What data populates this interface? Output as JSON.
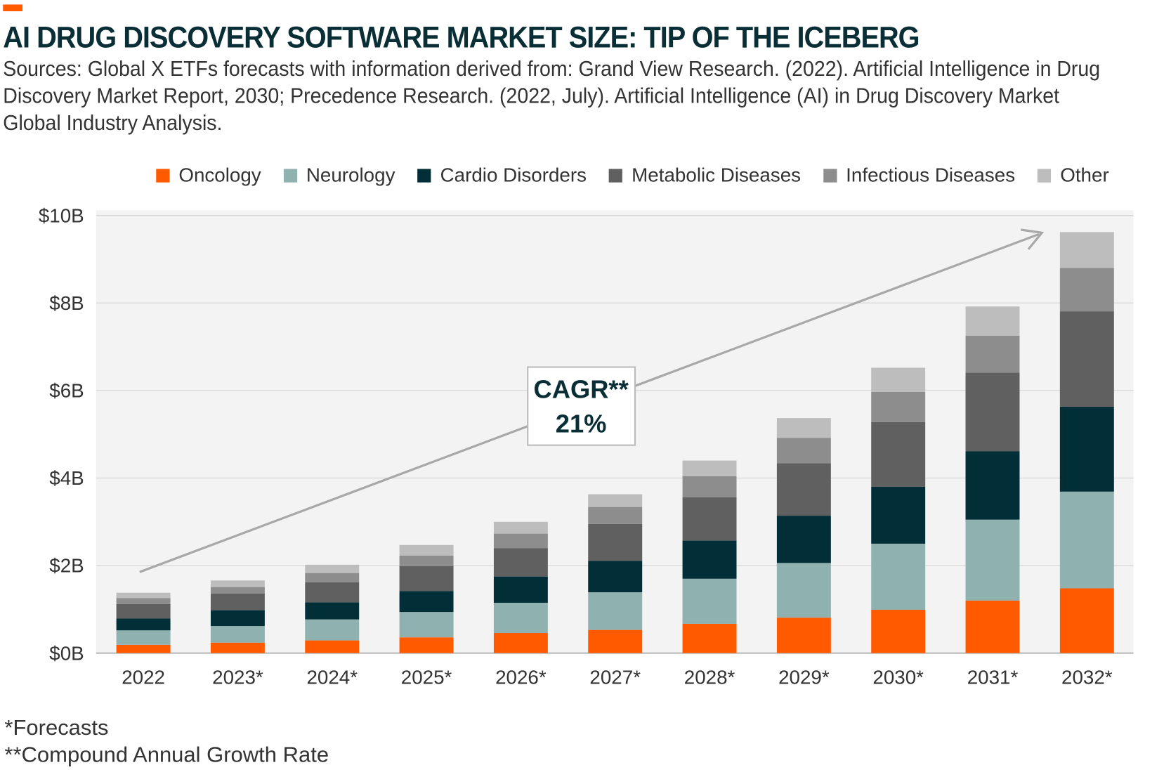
{
  "header": {
    "title": "AI DRUG DISCOVERY SOFTWARE MARKET SIZE: TIP OF THE ICEBERG",
    "subtitle": "Sources: Global X ETFs forecasts with information derived from: Grand View Research. (2022). Artificial Intelligence in Drug Discovery Market Report, 2030; Precedence Research. (2022, July). Artificial Intelligence (AI) in Drug Discovery Market Global Industry Analysis."
  },
  "colors": {
    "accent": "#ff5a00",
    "title": "#0a2e36",
    "plot_bg": "#f3f3f3"
  },
  "annotation": {
    "line1": "CAGR**",
    "line2": "21%"
  },
  "footnotes": [
    "*Forecasts",
    "**Compound Annual Growth Rate"
  ],
  "chart_data": {
    "type": "bar",
    "stacked": true,
    "title": "AI DRUG DISCOVERY SOFTWARE MARKET SIZE: TIP OF THE ICEBERG",
    "xlabel": "",
    "ylabel": "",
    "categories": [
      "2022",
      "2023*",
      "2024*",
      "2025*",
      "2026*",
      "2027*",
      "2028*",
      "2029*",
      "2030*",
      "2031*",
      "2032*"
    ],
    "ylim": [
      0,
      10
    ],
    "yticks": [
      0,
      2,
      4,
      6,
      8,
      10
    ],
    "ytick_labels": [
      "$0B",
      "$2B",
      "$4B",
      "$6B",
      "$8B",
      "$10B"
    ],
    "grid": true,
    "legend_position": "top",
    "series": [
      {
        "name": "Oncology",
        "color": "#ff5a00",
        "values": [
          0.19,
          0.24,
          0.29,
          0.36,
          0.46,
          0.53,
          0.67,
          0.81,
          0.99,
          1.2,
          1.48
        ]
      },
      {
        "name": "Neurology",
        "color": "#8fb1b0",
        "values": [
          0.33,
          0.38,
          0.48,
          0.58,
          0.69,
          0.86,
          1.03,
          1.25,
          1.51,
          1.85,
          2.21
        ]
      },
      {
        "name": "Cardio Disorders",
        "color": "#022f37",
        "values": [
          0.27,
          0.36,
          0.39,
          0.48,
          0.6,
          0.72,
          0.87,
          1.08,
          1.3,
          1.56,
          1.94
        ]
      },
      {
        "name": "Metabolic Diseases",
        "color": "#606060",
        "values": [
          0.33,
          0.38,
          0.46,
          0.57,
          0.65,
          0.84,
          0.99,
          1.2,
          1.48,
          1.8,
          2.18
        ]
      },
      {
        "name": "Infectious Diseases",
        "color": "#8d8d8d",
        "values": [
          0.14,
          0.15,
          0.21,
          0.24,
          0.33,
          0.39,
          0.48,
          0.58,
          0.69,
          0.84,
          0.99
        ]
      },
      {
        "name": "Other",
        "color": "#bdbdbd",
        "values": [
          0.12,
          0.15,
          0.19,
          0.24,
          0.27,
          0.29,
          0.36,
          0.45,
          0.55,
          0.67,
          0.82
        ]
      }
    ]
  }
}
